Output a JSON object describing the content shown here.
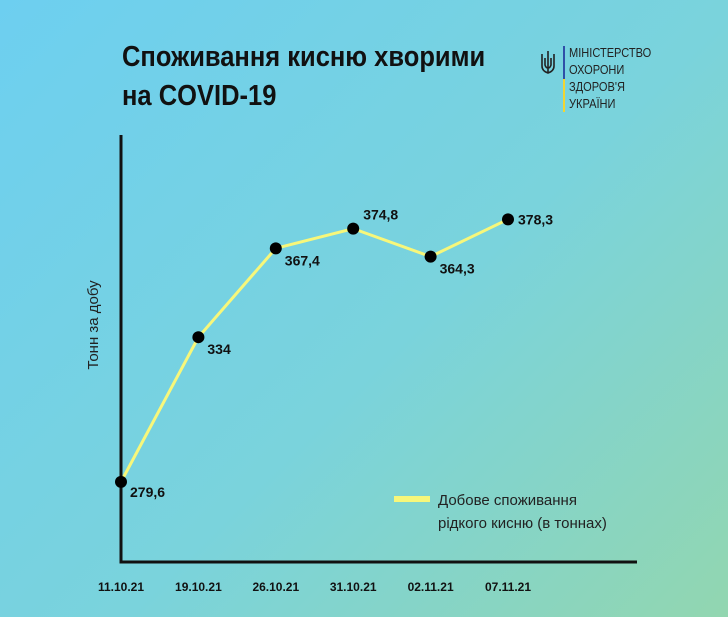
{
  "chart_data": {
    "type": "line",
    "title_lines": [
      "Споживання кисню хворими",
      "на COVID-19"
    ],
    "ylabel": "Тонн за добу",
    "xlabel": "",
    "categories": [
      "11.10.21",
      "19.10.21",
      "26.10.21",
      "31.10.21",
      "02.11.21",
      "07.11.21"
    ],
    "series": [
      {
        "name": "Добове споживання рідкого кисню (в тоннах)",
        "legend_lines": [
          "Добове споживання",
          "рідкого кисню (в тоннах)"
        ],
        "values": [
          279.6,
          334,
          367.4,
          374.8,
          364.3,
          378.3
        ],
        "labels": [
          "279,6",
          "334",
          "367,4",
          "374,8",
          "364,3",
          "378,3"
        ],
        "color": "#f7f77a"
      }
    ],
    "ylim": [
      249.5,
      410
    ],
    "grid": false,
    "legend_placement": "bottom-right"
  },
  "logo": {
    "lines": [
      "МІНІСТЕРСТВО",
      "ОХОРОНИ",
      "ЗДОРОВ'Я",
      "УКРАЇНИ"
    ],
    "icon": "trident-icon"
  }
}
